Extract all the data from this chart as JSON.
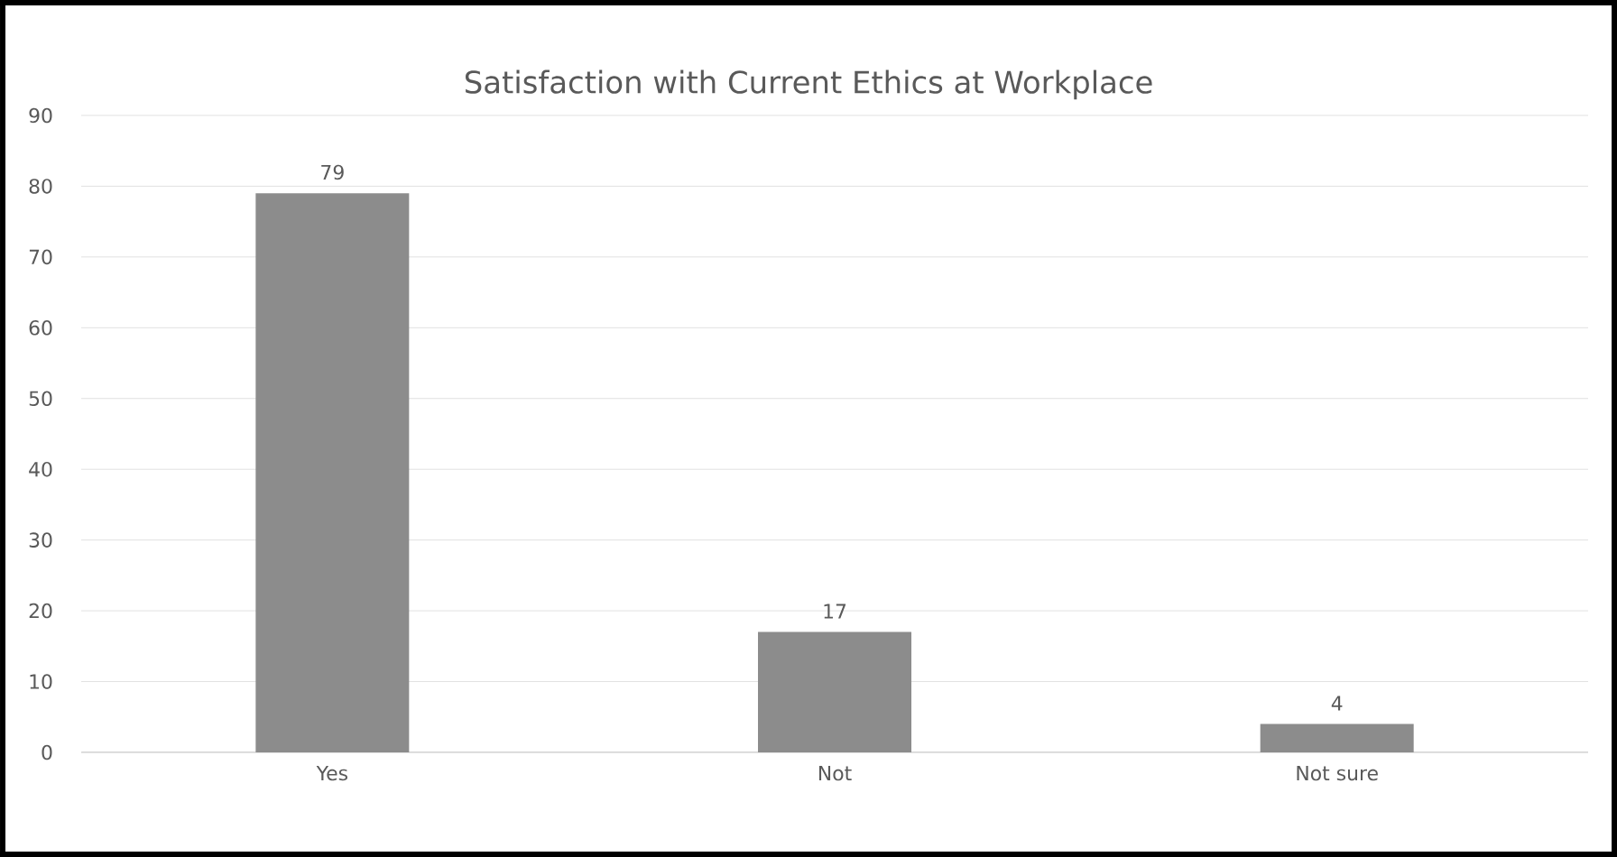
{
  "chart_data": {
    "type": "bar",
    "title": "Satisfaction with Current Ethics at Workplace",
    "categories": [
      "Yes",
      "Not",
      "Not sure"
    ],
    "values": [
      79,
      17,
      4
    ],
    "color": "#8c8c8c",
    "ylim": [
      0,
      90
    ],
    "yticks": [
      0,
      10,
      20,
      30,
      40,
      50,
      60,
      70,
      80,
      90
    ],
    "grid": "y",
    "data_labels": true
  }
}
